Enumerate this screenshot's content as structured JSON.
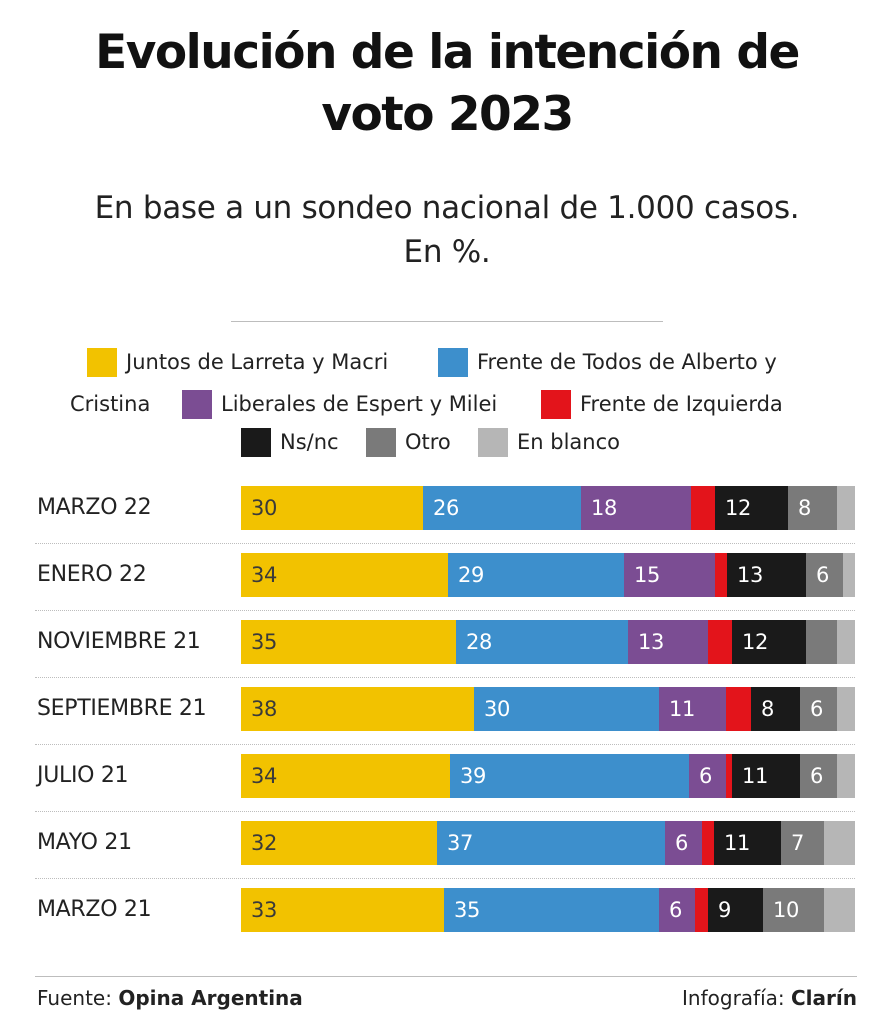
{
  "header": {
    "title_line1": "Evolución de la intención de",
    "title_line2": "voto 2023",
    "subtitle_line1": "En base a un sondeo nacional de 1.000 casos.",
    "subtitle_line2": "En %."
  },
  "legend": {
    "rows": [
      [
        {
          "label": "Juntos de Larreta y Macri",
          "color": "#f2c200"
        },
        {
          "label": "Frente de Todos de Alberto y",
          "color": "#3d8fcc"
        }
      ],
      [
        {
          "label": "Cristina",
          "color": ""
        },
        {
          "label": "Liberales de Espert y Milei",
          "color": "#7b4d93"
        },
        {
          "label": "Frente de Izquierda",
          "color": "#e3141b"
        }
      ],
      [
        {
          "label": "Ns/nc",
          "color": "#1a1a1a"
        },
        {
          "label": "Otro",
          "color": "#7a7a7a"
        },
        {
          "label": "En blanco",
          "color": "#b6b6b6"
        }
      ]
    ]
  },
  "chart_data": {
    "type": "bar",
    "orientation": "horizontal",
    "stacked": true,
    "title": "Evolución de la intención de voto 2023",
    "subtitle": "En base a un sondeo nacional de 1.000 casos. En %.",
    "categories": [
      "MARZO 22",
      "ENERO 22",
      "NOVIEMBRE 21",
      "SEPTIEMBRE 21",
      "JULIO 21",
      "MAYO 21",
      "MARZO 21"
    ],
    "series": [
      {
        "name": "Juntos de Larreta y Macri",
        "color": "#f2c200",
        "values": [
          30,
          34,
          35,
          38,
          34,
          32,
          33
        ],
        "labels": [
          "30",
          "34",
          "35",
          "38",
          "34",
          "32",
          "33"
        ],
        "label_color": "#3a3a3a"
      },
      {
        "name": "Frente de Todos de Alberto y Cristina",
        "color": "#3d8fcc",
        "values": [
          26,
          29,
          28,
          30,
          39,
          37,
          35
        ],
        "labels": [
          "26",
          "29",
          "28",
          "30",
          "39",
          "37",
          "35"
        ],
        "label_color": "#ffffff"
      },
      {
        "name": "Liberales de Espert y Milei",
        "color": "#7b4d93",
        "values": [
          18,
          15,
          13,
          11,
          6,
          6,
          6
        ],
        "labels": [
          "18",
          "15",
          "13",
          "11",
          "6",
          "6",
          "6"
        ],
        "label_color": "#ffffff"
      },
      {
        "name": "Frente de Izquierda",
        "color": "#e3141b",
        "values": [
          4,
          2,
          4,
          4,
          1,
          2,
          2
        ],
        "labels": [
          "",
          "",
          "",
          "",
          "",
          "",
          ""
        ],
        "label_color": "#ffffff"
      },
      {
        "name": "Ns/nc",
        "color": "#1a1a1a",
        "values": [
          12,
          13,
          12,
          8,
          11,
          11,
          9
        ],
        "labels": [
          "12",
          "13",
          "12",
          "8",
          "11",
          "11",
          "9"
        ],
        "label_color": "#ffffff"
      },
      {
        "name": "Otro",
        "color": "#7a7a7a",
        "values": [
          8,
          6,
          5,
          6,
          6,
          7,
          10
        ],
        "labels": [
          "8",
          "6",
          "",
          "6",
          "6",
          "7",
          "10"
        ],
        "label_color": "#ffffff"
      },
      {
        "name": "En blanco",
        "color": "#b6b6b6",
        "values": [
          3,
          2,
          3,
          3,
          3,
          5,
          5
        ],
        "labels": [
          "",
          "",
          "",
          "",
          "",
          "",
          ""
        ],
        "label_color": "#ffffff"
      }
    ],
    "xlim": [
      0,
      100
    ],
    "unit": "%",
    "legend_position": "top",
    "grid": false
  },
  "footer": {
    "source_prefix": "Fuente:",
    "source_name": "Opina Argentina",
    "credit_prefix": "Infografía:",
    "credit_name": "Clarín"
  }
}
